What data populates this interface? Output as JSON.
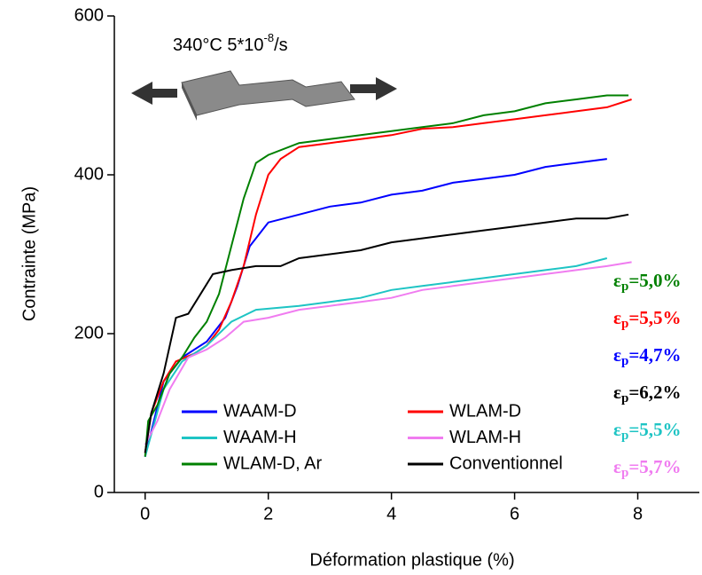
{
  "chart_data": {
    "type": "line",
    "xlabel": "Déformation plastique (%)",
    "ylabel": "Contrainte (MPa)",
    "xlim": [
      -0.5,
      9
    ],
    "xticks": [
      0,
      2,
      4,
      6,
      8
    ],
    "ylim": [
      0,
      600
    ],
    "yticks": [
      0,
      200,
      400,
      600
    ],
    "conditions": [
      "340°C  5*10",
      "-8",
      "/s"
    ],
    "series": [
      {
        "name": "WAAM-D",
        "color": "#0000ff",
        "x": [
          0,
          0.3,
          0.6,
          1.0,
          1.3,
          1.5,
          1.7,
          2.0,
          2.5,
          3,
          3.5,
          4,
          4.5,
          5,
          5.5,
          6,
          6.5,
          7,
          7.5
        ],
        "values": [
          45,
          140,
          170,
          190,
          220,
          260,
          310,
          340,
          350,
          360,
          365,
          375,
          380,
          390,
          395,
          400,
          410,
          415,
          420
        ]
      },
      {
        "name": "WLAM-D",
        "color": "#ff0000",
        "x": [
          0,
          0.1,
          0.3,
          0.5,
          0.8,
          1.0,
          1.2,
          1.4,
          1.6,
          1.8,
          2.0,
          2.2,
          2.5,
          3,
          3.5,
          4,
          4.5,
          5,
          5.5,
          6,
          6.5,
          7,
          7.5,
          7.9
        ],
        "values": [
          50,
          100,
          140,
          165,
          175,
          185,
          205,
          240,
          285,
          350,
          400,
          420,
          435,
          440,
          445,
          450,
          458,
          460,
          465,
          470,
          475,
          480,
          485,
          495
        ]
      },
      {
        "name": "WAAM-H",
        "color": "#1ec4c4",
        "x": [
          0,
          0.3,
          0.6,
          1.0,
          1.4,
          1.8,
          2.5,
          3,
          3.5,
          4,
          4.5,
          5,
          5.5,
          6,
          6.5,
          7,
          7.5
        ],
        "values": [
          45,
          130,
          165,
          185,
          215,
          230,
          235,
          240,
          245,
          255,
          260,
          265,
          270,
          275,
          280,
          285,
          295
        ]
      },
      {
        "name": "WLAM-H",
        "color": "#f07cf0",
        "x": [
          0,
          0.2,
          0.4,
          0.7,
          1.0,
          1.3,
          1.6,
          2,
          2.5,
          3,
          3.5,
          4,
          4.5,
          5,
          5.5,
          6,
          6.5,
          7,
          7.5,
          7.9
        ],
        "values": [
          60,
          90,
          130,
          170,
          180,
          195,
          215,
          220,
          230,
          235,
          240,
          245,
          255,
          260,
          265,
          270,
          275,
          280,
          285,
          290
        ]
      },
      {
        "name": "WLAM-D, Ar",
        "color": "#008000",
        "x": [
          0,
          0.05,
          0.2,
          0.4,
          0.6,
          0.8,
          1.0,
          1.2,
          1.4,
          1.6,
          1.8,
          2.0,
          2.5,
          3,
          3.5,
          4,
          4.5,
          5,
          5.5,
          6,
          6.5,
          7,
          7.5,
          7.85
        ],
        "values": [
          45,
          90,
          110,
          150,
          170,
          195,
          215,
          250,
          310,
          370,
          415,
          425,
          440,
          445,
          450,
          455,
          460,
          465,
          475,
          480,
          490,
          495,
          500,
          500
        ]
      },
      {
        "name": "Conventionnel",
        "color": "#000000",
        "x": [
          0,
          0.1,
          0.3,
          0.5,
          0.7,
          0.9,
          1.1,
          1.4,
          1.8,
          2.2,
          2.5,
          3,
          3.5,
          4,
          4.5,
          5,
          5.5,
          6,
          6.5,
          7,
          7.5,
          7.85
        ],
        "values": [
          50,
          100,
          150,
          220,
          225,
          250,
          275,
          280,
          285,
          285,
          295,
          300,
          305,
          315,
          320,
          325,
          330,
          335,
          340,
          345,
          345,
          350
        ]
      }
    ],
    "strain_labels": [
      {
        "symbol": "ε",
        "sub": "p",
        "text": "=5,0%",
        "color": "#008000"
      },
      {
        "symbol": "ε",
        "sub": "p",
        "text": "=5,5%",
        "color": "#ff0000"
      },
      {
        "symbol": "ε",
        "sub": "p",
        "text": "=4,7%",
        "color": "#0000ff"
      },
      {
        "symbol": "ε",
        "sub": "p",
        "text": "=6,2%",
        "color": "#000000"
      },
      {
        "symbol": "ε",
        "sub": "p",
        "text": "=5,5%",
        "color": "#1ec4c4"
      },
      {
        "symbol": "ε",
        "sub": "p",
        "text": "=5,7%",
        "color": "#f07cf0"
      }
    ]
  }
}
